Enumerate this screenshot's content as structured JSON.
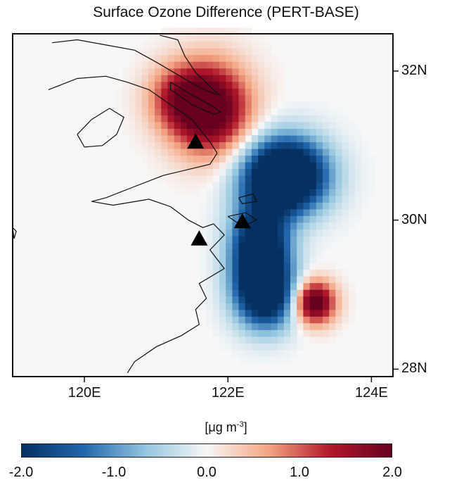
{
  "title": "Surface Ozone Difference (PERT-BASE)",
  "axes": {
    "x_ticks": [
      {
        "value": 120,
        "label": "120E"
      },
      {
        "value": 122,
        "label": "122E"
      },
      {
        "value": 124,
        "label": "124E"
      }
    ],
    "y_ticks": [
      {
        "value": 32,
        "label": "32N"
      },
      {
        "value": 30,
        "label": "30N"
      },
      {
        "value": 28,
        "label": "28N"
      }
    ],
    "lon_range": [
      119.0,
      124.3
    ],
    "lat_range": [
      27.9,
      32.5
    ]
  },
  "field": {
    "type": "gridded difference map",
    "grid_cell_deg": 0.09,
    "blobs": [
      {
        "name": "positive-north",
        "lon": 121.75,
        "lat": 31.5,
        "sigma_lon": 0.38,
        "sigma_lat": 0.42,
        "amp": 2.4
      },
      {
        "name": "positive-north-ext",
        "lon": 121.3,
        "lat": 31.65,
        "sigma_lon": 0.3,
        "sigma_lat": 0.3,
        "amp": 1.0
      },
      {
        "name": "negative-east",
        "lon": 122.8,
        "lat": 30.6,
        "sigma_lon": 0.4,
        "sigma_lat": 0.35,
        "amp": -3.5
      },
      {
        "name": "negative-south",
        "lon": 122.45,
        "lat": 29.55,
        "sigma_lon": 0.28,
        "sigma_lat": 0.45,
        "amp": -3.0
      },
      {
        "name": "negative-south-tail",
        "lon": 122.55,
        "lat": 28.95,
        "sigma_lon": 0.3,
        "sigma_lat": 0.3,
        "amp": -1.8
      },
      {
        "name": "positive-southeast",
        "lon": 123.2,
        "lat": 28.9,
        "sigma_lon": 0.2,
        "sigma_lat": 0.2,
        "amp": 2.4
      }
    ]
  },
  "markers": [
    {
      "name": "site-shanghai",
      "lon": 121.55,
      "lat": 31.05
    },
    {
      "name": "site-ningbo",
      "lon": 121.6,
      "lat": 29.75
    },
    {
      "name": "site-zhoushan",
      "lon": 122.2,
      "lat": 29.98
    }
  ],
  "coastline": [
    {
      "name": "yangtze-north-bank",
      "points": [
        [
          119.55,
          32.38
        ],
        [
          119.9,
          32.42
        ],
        [
          120.3,
          32.35
        ],
        [
          120.7,
          32.28
        ],
        [
          121.0,
          32.12
        ],
        [
          121.3,
          31.95
        ],
        [
          121.6,
          31.78
        ],
        [
          121.85,
          31.68
        ]
      ]
    },
    {
      "name": "jiangsu-coast",
      "points": [
        [
          121.05,
          32.48
        ],
        [
          121.3,
          32.42
        ],
        [
          121.4,
          32.2
        ],
        [
          121.55,
          31.98
        ],
        [
          121.8,
          31.75
        ],
        [
          121.9,
          31.66
        ]
      ]
    },
    {
      "name": "yangtze-south-bank",
      "points": [
        [
          119.5,
          31.75
        ],
        [
          119.9,
          31.9
        ],
        [
          120.3,
          31.93
        ],
        [
          120.6,
          31.85
        ],
        [
          120.9,
          31.75
        ],
        [
          121.2,
          31.55
        ],
        [
          121.5,
          31.35
        ],
        [
          121.75,
          31.05
        ],
        [
          121.85,
          30.9
        ]
      ]
    },
    {
      "name": "chongming-island",
      "points": [
        [
          121.2,
          31.85
        ],
        [
          121.5,
          31.68
        ],
        [
          121.8,
          31.52
        ],
        [
          121.9,
          31.45
        ],
        [
          121.8,
          31.42
        ],
        [
          121.5,
          31.55
        ],
        [
          121.2,
          31.75
        ],
        [
          121.2,
          31.85
        ]
      ]
    },
    {
      "name": "shanghai-coast",
      "points": [
        [
          121.85,
          30.9
        ],
        [
          121.75,
          30.75
        ],
        [
          121.45,
          30.68
        ],
        [
          121.1,
          30.6
        ],
        [
          120.7,
          30.45
        ],
        [
          120.3,
          30.3
        ],
        [
          120.1,
          30.25
        ],
        [
          120.4,
          30.2
        ],
        [
          120.9,
          30.28
        ],
        [
          121.2,
          30.18
        ],
        [
          121.45,
          30.0
        ],
        [
          121.65,
          29.9
        ],
        [
          121.8,
          29.95
        ]
      ]
    },
    {
      "name": "zhejiang-coast",
      "points": [
        [
          121.8,
          29.95
        ],
        [
          121.95,
          29.8
        ],
        [
          121.75,
          29.6
        ],
        [
          121.95,
          29.35
        ],
        [
          121.6,
          29.15
        ],
        [
          121.7,
          28.95
        ],
        [
          121.55,
          28.8
        ],
        [
          121.6,
          28.6
        ],
        [
          121.35,
          28.45
        ],
        [
          121.0,
          28.3
        ],
        [
          120.7,
          28.1
        ],
        [
          120.6,
          27.95
        ]
      ]
    },
    {
      "name": "taihu-lake",
      "points": [
        [
          119.9,
          31.15
        ],
        [
          120.1,
          31.35
        ],
        [
          120.35,
          31.5
        ],
        [
          120.55,
          31.38
        ],
        [
          120.45,
          31.15
        ],
        [
          120.25,
          31.0
        ],
        [
          120.0,
          30.98
        ],
        [
          119.9,
          31.15
        ]
      ]
    },
    {
      "name": "zhoushan-isl-1",
      "points": [
        [
          122.0,
          30.05
        ],
        [
          122.25,
          30.1
        ],
        [
          122.4,
          30.0
        ],
        [
          122.2,
          29.92
        ],
        [
          122.0,
          30.05
        ]
      ]
    },
    {
      "name": "zhoushan-isl-2",
      "points": [
        [
          122.15,
          30.3
        ],
        [
          122.35,
          30.35
        ],
        [
          122.4,
          30.25
        ],
        [
          122.2,
          30.22
        ],
        [
          122.15,
          30.3
        ]
      ]
    },
    {
      "name": "west-island",
      "points": [
        [
          119.0,
          29.9
        ],
        [
          119.05,
          29.85
        ],
        [
          119.02,
          29.75
        ],
        [
          119.0,
          29.9
        ]
      ]
    }
  ],
  "colorbar": {
    "unit_label": "[μg m",
    "unit_sup": "-3",
    "unit_close": "]",
    "vmin": -2.0,
    "vmax": 2.0,
    "ticks": [
      {
        "value": -2.0,
        "label": "-2.0"
      },
      {
        "value": -1.0,
        "label": "-1.0"
      },
      {
        "value": 0.0,
        "label": "0.0"
      },
      {
        "value": 1.0,
        "label": "1.0"
      },
      {
        "value": 2.0,
        "label": "2.0"
      }
    ],
    "colors": {
      "neg_dark": "#053061",
      "neg_mid": "#2166ac",
      "neg_light": "#92c5de",
      "zero": "#f7f7f7",
      "pos_light": "#f4a582",
      "pos_mid": "#b2182b",
      "pos_dark": "#67001f"
    }
  }
}
